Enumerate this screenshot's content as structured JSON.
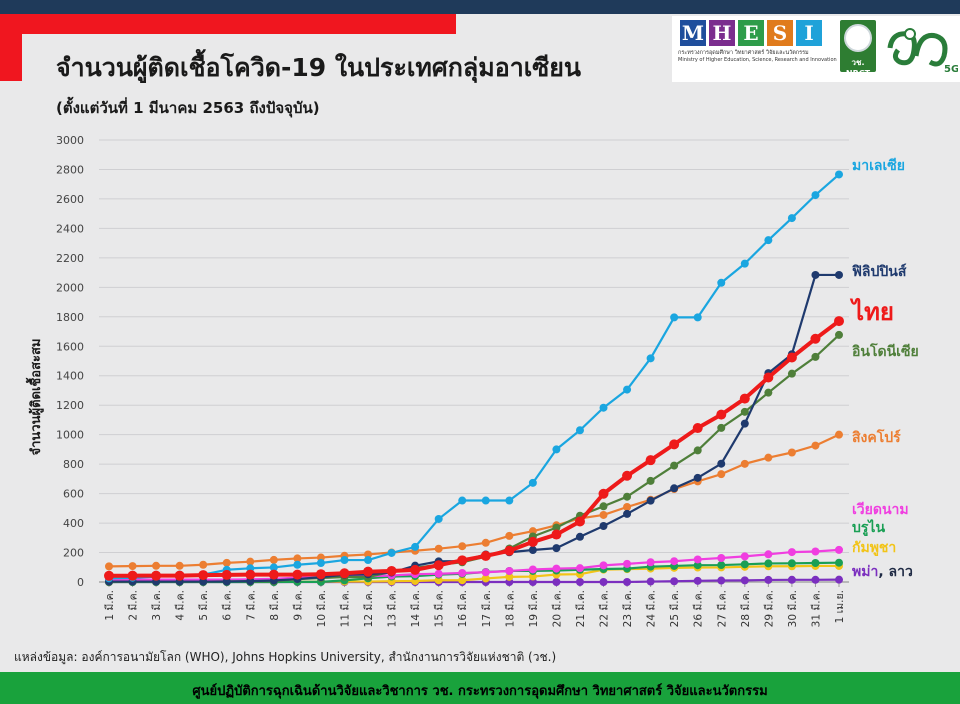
{
  "header": {
    "title": "จำนวนผู้ติดเชื้อโควิด-19 ในประเทศกลุ่มอาเซียน",
    "subtitle": "(ตั้งแต่วันที่ 1 มีนาคม 2563 ถึงปัจจุบัน)"
  },
  "logos": {
    "mhesi_letters": [
      "M",
      "H",
      "E",
      "S",
      "I"
    ],
    "mhesi_colors": [
      "#1f4e9c",
      "#7b2d8e",
      "#2e9c4a",
      "#e07b1c",
      "#1fa2d9"
    ],
    "mhesi_line1": "กระทรวงการอุดมศึกษา วิทยาศาสตร์ วิจัยและนวัตกรรม",
    "mhesi_line2": "Ministry of Higher Education, Science, Research and Innovation",
    "nrct_label": "วช. NRCT",
    "v5g_label": "5G"
  },
  "source": "แหล่งข้อมูล: องค์การอนามัยโลก (WHO), Johns Hopkins University, สำนักงานการวิจัยแห่งชาติ (วช.)",
  "footer": "ศูนย์ปฏิบัติการฉุกเฉินด้านวิจัยและวิชาการ   วช.   กระทรวงการอุดมศึกษา วิทยาศาสตร์ วิจัยและนวัตกรรม",
  "chart_data": {
    "type": "line",
    "ylabel": "จำนวนผู้ติดเชื้อสะสม",
    "ylim": [
      0,
      3000
    ],
    "yticks": [
      0,
      200,
      400,
      600,
      800,
      1000,
      1200,
      1400,
      1600,
      1800,
      2000,
      2200,
      2400,
      2600,
      2800,
      3000
    ],
    "grid": true,
    "categories": [
      "1 มี.ค.",
      "2 มี.ค.",
      "3 มี.ค.",
      "4 มี.ค.",
      "5 มี.ค.",
      "6 มี.ค.",
      "7 มี.ค.",
      "8 มี.ค.",
      "9 มี.ค.",
      "10 มี.ค.",
      "11 มี.ค.",
      "12 มี.ค.",
      "13 มี.ค.",
      "14 มี.ค.",
      "15 มี.ค.",
      "16 มี.ค.",
      "17 มี.ค.",
      "18 มี.ค.",
      "19 มี.ค.",
      "20 มี.ค.",
      "21 มี.ค.",
      "22 มี.ค.",
      "23 มี.ค.",
      "24 มี.ค.",
      "25 มี.ค.",
      "26 มี.ค.",
      "27 มี.ค.",
      "28 มี.ค.",
      "29 มี.ค.",
      "30 มี.ค.",
      "31 มี.ค.",
      "1 เม.ย."
    ],
    "series": [
      {
        "name": "มาเลเซีย",
        "color": "#1aa6e0",
        "width": 2.2,
        "label_size": 14,
        "values": [
          25,
          29,
          36,
          50,
          50,
          83,
          93,
          99,
          117,
          129,
          149,
          149,
          197,
          238,
          428,
          553,
          553,
          553,
          673,
          900,
          1030,
          1183,
          1306,
          1518,
          1796,
          1796,
          2031,
          2161,
          2320,
          2470,
          2626,
          2766
        ]
      },
      {
        "name": "ฟิลิปปินส์",
        "color": "#1f3a6e",
        "width": 2.2,
        "label_size": 14,
        "values": [
          3,
          3,
          3,
          3,
          3,
          3,
          6,
          10,
          20,
          33,
          49,
          52,
          64,
          111,
          140,
          142,
          187,
          202,
          217,
          230,
          307,
          380,
          462,
          552,
          636,
          707,
          803,
          1075,
          1418,
          1546,
          2084,
          2084
        ]
      },
      {
        "name": "ไทย",
        "color": "#ee1a1a",
        "width": 4,
        "label_size": 24,
        "values": [
          42,
          43,
          43,
          43,
          47,
          48,
          50,
          50,
          50,
          53,
          59,
          70,
          75,
          82,
          114,
          147,
          177,
          212,
          272,
          322,
          411,
          599,
          721,
          827,
          934,
          1045,
          1136,
          1245,
          1388,
          1524,
          1651,
          1771
        ]
      },
      {
        "name": "อินโดนีเซีย",
        "color": "#4f7f3a",
        "width": 2.2,
        "label_size": 14,
        "values": [
          0,
          2,
          2,
          2,
          2,
          4,
          4,
          6,
          19,
          27,
          34,
          34,
          69,
          96,
          117,
          134,
          172,
          227,
          309,
          369,
          450,
          514,
          579,
          686,
          790,
          893,
          1046,
          1155,
          1285,
          1414,
          1528,
          1677
        ]
      },
      {
        "name": "สิงคโปร์",
        "color": "#ec7e32",
        "width": 2.2,
        "label_size": 14,
        "values": [
          106,
          108,
          110,
          110,
          117,
          130,
          138,
          150,
          160,
          166,
          178,
          187,
          200,
          212,
          226,
          243,
          266,
          313,
          345,
          385,
          432,
          455,
          509,
          558,
          631,
          683,
          732,
          802,
          844,
          879,
          926,
          1000
        ]
      },
      {
        "name": "เวียดนาม",
        "color": "#f03ee0",
        "width": 2.2,
        "label_size": 14,
        "values": [
          16,
          16,
          16,
          16,
          16,
          16,
          18,
          21,
          30,
          31,
          38,
          39,
          44,
          53,
          56,
          61,
          66,
          75,
          85,
          91,
          94,
          113,
          123,
          134,
          141,
          153,
          163,
          174,
          188,
          203,
          207,
          218
        ]
      },
      {
        "name": "บรูไน",
        "color": "#1a9f55",
        "width": 2.2,
        "label_size": 14,
        "values": [
          0,
          0,
          0,
          0,
          0,
          0,
          0,
          0,
          1,
          1,
          11,
          25,
          37,
          40,
          50,
          56,
          68,
          75,
          75,
          78,
          83,
          88,
          91,
          104,
          109,
          114,
          115,
          120,
          126,
          127,
          129,
          131
        ]
      },
      {
        "name": "กัมพูชา",
        "color": "#f2c418",
        "width": 2.2,
        "label_size": 14,
        "values": [
          1,
          1,
          1,
          1,
          1,
          1,
          2,
          2,
          2,
          2,
          3,
          3,
          5,
          7,
          12,
          12,
          24,
          35,
          37,
          51,
          53,
          84,
          87,
          91,
          96,
          98,
          99,
          103,
          107,
          107,
          109,
          109
        ]
      },
      {
        "name": "พม่า, ลาว",
        "color": "#7b2fbf",
        "width": 2.2,
        "label_size": 14,
        "values": [
          0,
          0,
          0,
          0,
          0,
          0,
          0,
          0,
          0,
          0,
          0,
          0,
          0,
          0,
          0,
          0,
          0,
          0,
          0,
          0,
          0,
          0,
          0,
          3,
          5,
          8,
          10,
          11,
          14,
          15,
          15,
          16
        ]
      }
    ]
  }
}
